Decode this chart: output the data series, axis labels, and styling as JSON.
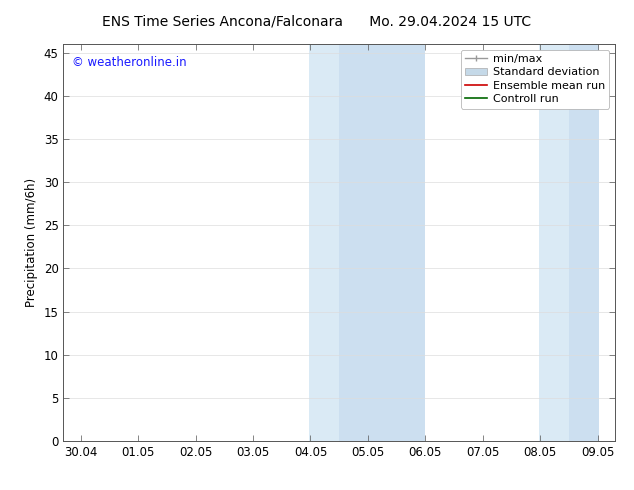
{
  "title_left": "ENS Time Series Ancona/Falconara",
  "title_right": "Mo. 29.04.2024 15 UTC",
  "ylabel": "Precipitation (mm/6h)",
  "watermark": "© weatheronline.in",
  "watermark_color": "#1a1aff",
  "background_color": "#ffffff",
  "plot_bg_color": "#ffffff",
  "ylim": [
    0,
    46
  ],
  "yticks": [
    0,
    5,
    10,
    15,
    20,
    25,
    30,
    35,
    40,
    45
  ],
  "xtick_labels": [
    "30.04",
    "01.05",
    "02.05",
    "03.05",
    "04.05",
    "05.05",
    "06.05",
    "07.05",
    "08.05",
    "09.05"
  ],
  "xtick_positions": [
    0,
    1,
    2,
    3,
    4,
    5,
    6,
    7,
    8,
    9
  ],
  "xlim": [
    -0.3,
    9.3
  ],
  "shade_regions": [
    {
      "xmin": 3.97,
      "xmax": 4.5,
      "color": "#daeaf5"
    },
    {
      "xmin": 4.5,
      "xmax": 6.0,
      "color": "#ccdff0"
    },
    {
      "xmin": 7.97,
      "xmax": 8.5,
      "color": "#daeaf5"
    },
    {
      "xmin": 8.5,
      "xmax": 9.03,
      "color": "#ccdff0"
    }
  ],
  "legend_items": [
    {
      "label": "min/max",
      "type": "minmax",
      "color": "#999999"
    },
    {
      "label": "Standard deviation",
      "type": "patch",
      "color": "#c5d9e8"
    },
    {
      "label": "Ensemble mean run",
      "type": "line",
      "color": "#cc0000",
      "linewidth": 1.2
    },
    {
      "label": "Controll run",
      "type": "line",
      "color": "#006600",
      "linewidth": 1.2
    }
  ],
  "title_fontsize": 10,
  "tick_fontsize": 8.5,
  "ylabel_fontsize": 8.5,
  "legend_fontsize": 8,
  "font_family": "DejaVu Sans"
}
